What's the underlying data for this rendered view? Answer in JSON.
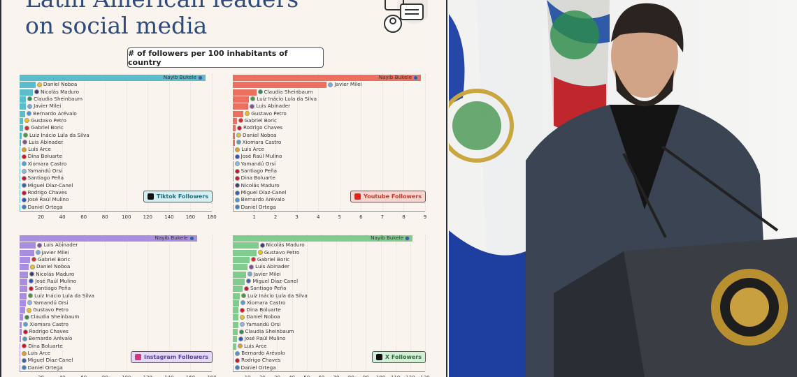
{
  "header": {
    "title_line1": "Latin American leaders",
    "title_line2": "on social media",
    "subtitle": "# of followers per 100 inhabitants of country"
  },
  "flag_colors": {
    "Nayib Bukele": "#2b5fb0",
    "Daniel Noboa": "#e8c22e",
    "Nicolás Maduro": "#3b3b7a",
    "Claudia Sheinbaum": "#2e8b4a",
    "Javier Milei": "#74acdf",
    "Bernardo Arévalo": "#4997d0",
    "Gustavo Petro": "#f4c20d",
    "Gabriel Boric": "#d52b1e",
    "Luiz Inácio Lula da Silva": "#3e9d3a",
    "Luis Abinader": "#7d4f9c",
    "Luis Arce": "#e0a020",
    "Dina Boluarte": "#d91023",
    "Xiomara Castro": "#4aa3df",
    "Yamandú Orsi": "#8db8e0",
    "Santiago Peña": "#c8102e",
    "Miguel Díaz-Canel": "#3a5fa8",
    "Rodrigo Chaves": "#c8102e",
    "José Raúl Mulino": "#2a52be",
    "Daniel Ortega": "#3a7fc4"
  },
  "chart_data": [
    {
      "type": "bar",
      "orientation": "horizontal",
      "legend": "Tiktok Followers",
      "color": "#5bbccc",
      "legend_bg": "#d4eef2",
      "icon": "tiktok-icon",
      "xlim": [
        0,
        180
      ],
      "xticks": [
        20,
        40,
        60,
        80,
        100,
        120,
        140,
        160,
        180
      ],
      "categories": [
        "Nayib Bukele",
        "Daniel Noboa",
        "Nicolás Maduro",
        "Claudia Sheinbaum",
        "Javier Milei",
        "Bernardo Arévalo",
        "Gustavo Petro",
        "Gabriel Boric",
        "Luiz Inácio Lula da Silva",
        "Luis Abinader",
        "Luis Arce",
        "Dina Boluarte",
        "Xiomara Castro",
        "Yamandú Orsi",
        "Santiago Peña",
        "Miguel Díaz-Canel",
        "Rodrigo Chaves",
        "José Raúl Mulino",
        "Daniel Ortega"
      ],
      "values": [
        174,
        15,
        12.4,
        6,
        6,
        5.5,
        3.5,
        3.5,
        2,
        1.5,
        0.8,
        0.5,
        0.3,
        0.2,
        0.2,
        0.2,
        0.2,
        0.1,
        0.1
      ]
    },
    {
      "type": "bar",
      "orientation": "horizontal",
      "legend": "Youtube Followers",
      "color": "#ec6f5f",
      "legend_bg": "#f9d5cf",
      "icon": "youtube-icon",
      "xlim": [
        0,
        9
      ],
      "xticks": [
        1,
        2,
        3,
        4,
        5,
        6,
        7,
        8,
        9
      ],
      "categories": [
        "Nayib Bukele",
        "Javier Milei",
        "Claudia Sheinbaum",
        "Luiz Inácio Lula da Silva",
        "Luis Abinader",
        "Gustavo Petro",
        "Gabriel Boric",
        "Rodrigo Chaves",
        "Daniel Noboa",
        "Xiomara Castro",
        "Luis Arce",
        "José Raúl Mulino",
        "Yamandú Orsi",
        "Santiago Peña",
        "Dina Boluarte",
        "Nicolás Maduro",
        "Miguel Díaz-Canel",
        "Bernardo Arévalo",
        "Daniel Ortega"
      ],
      "values": [
        8.8,
        4.4,
        1.1,
        0.76,
        0.73,
        0.5,
        0.18,
        0.13,
        0.1,
        0.09,
        0.04,
        0.01,
        0.01,
        0.01,
        0.01,
        0.01,
        0.01,
        0.01,
        0.01
      ]
    },
    {
      "type": "bar",
      "orientation": "horizontal",
      "legend": "Instagram Followers",
      "color": "#a98de0",
      "legend_bg": "#e3d9f6",
      "icon": "instagram-icon",
      "xlim": [
        0,
        180
      ],
      "xticks": [
        20,
        40,
        60,
        80,
        100,
        120,
        140,
        160,
        180
      ],
      "categories": [
        "Nayib Bukele",
        "Luis Abinader",
        "Javier Milei",
        "Gabriel Boric",
        "Daniel Noboa",
        "Nicolás Maduro",
        "José Raúl Mulino",
        "Santiago Peña",
        "Luiz Inácio Lula da Silva",
        "Yamandú Orsi",
        "Gustavo Petro",
        "Claudia Sheinbaum",
        "Xiomara Castro",
        "Rodrigo Chaves",
        "Bernardo Arévalo",
        "Dina Boluarte",
        "Luis Arce",
        "Miguel Díaz-Canel",
        "Daniel Ortega"
      ],
      "values": [
        166,
        15.3,
        13.5,
        9.8,
        8.5,
        8,
        7.4,
        7,
        6.6,
        5.9,
        5.5,
        3,
        2.2,
        1.7,
        1.3,
        0.9,
        0.4,
        0.2,
        0.1
      ]
    },
    {
      "type": "bar",
      "orientation": "horizontal",
      "legend": "X Followers",
      "color": "#7fcc8e",
      "legend_bg": "#d3efd8",
      "icon": "x-icon",
      "xlim": [
        0,
        130
      ],
      "xticks": [
        10,
        20,
        30,
        40,
        50,
        60,
        70,
        80,
        90,
        100,
        110,
        120,
        130
      ],
      "categories": [
        "Nayib Bukele",
        "Nicolás Maduro",
        "Gustavo Petro",
        "Gabriel Boric",
        "Luis Abinader",
        "Javier Milei",
        "Miguel Díaz-Canel",
        "Santiago Peña",
        "Luiz Inácio Lula da Silva",
        "Xiomara Castro",
        "Dina Boluarte",
        "Daniel Noboa",
        "Yamandú Orsi",
        "Claudia Sheinbaum",
        "José Raúl Mulino",
        "Luis Arce",
        "Bernardo Arévalo",
        "Rodrigo Chaves",
        "Daniel Ortega"
      ],
      "values": [
        121.6,
        17.3,
        16,
        11.3,
        10,
        8.8,
        8.2,
        6.6,
        4.7,
        4.2,
        4,
        3.9,
        3.8,
        3.1,
        2.7,
        2.4,
        0.6,
        0.5,
        0.1
      ]
    }
  ]
}
